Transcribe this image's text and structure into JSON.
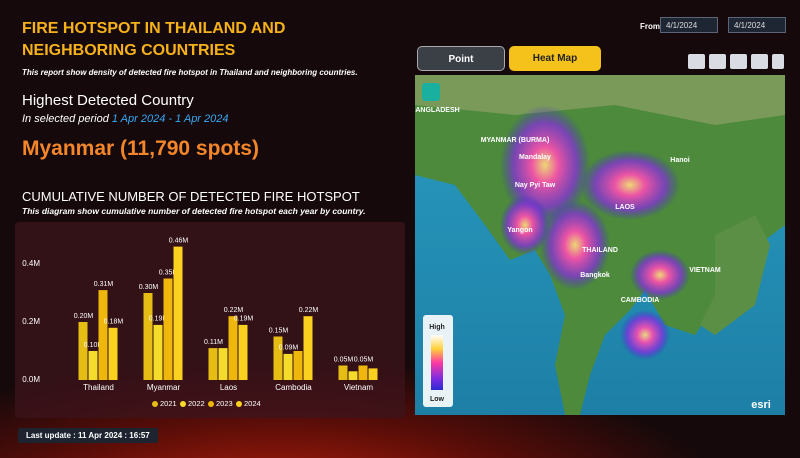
{
  "header": {
    "title": "FIRE HOTSPOT IN THAILAND AND NEIGHBORING COUNTRIES",
    "description": "This report show density of detected fire hotspot in Thailand and neighboring countries.",
    "from_label": "From",
    "date_from": "4/1/2024",
    "date_to": "4/1/2024"
  },
  "highlight": {
    "heading": "Highest Detected Country",
    "period_label": "In selected period",
    "period": "1 Apr 2024 - 1 Apr 2024",
    "result": "Myanmar (11,790 spots)"
  },
  "chart_data": {
    "type": "bar",
    "title": "CUMULATIVE NUMBER OF DETECTED FIRE HOTSPOT",
    "subtitle": "This diagram show cumulative number of detected fire hotspot each year by country.",
    "categories": [
      "Thailand",
      "Myanmar",
      "Laos",
      "Cambodia",
      "Vietnam"
    ],
    "series": [
      {
        "name": "2021",
        "color": "#e6bd14",
        "values": [
          0.2,
          0.3,
          0.11,
          0.15,
          0.05
        ],
        "value_labels": [
          "0.20M",
          "0.30M",
          "0.11M",
          "0.15M",
          "0.05M"
        ]
      },
      {
        "name": "2022",
        "color": "#f5dc2a",
        "values": [
          0.1,
          0.19,
          0.11,
          0.09,
          0.03
        ],
        "value_labels": [
          "0.10M",
          "0.19M",
          null,
          "0.09M",
          null
        ]
      },
      {
        "name": "2023",
        "color": "#efb70c",
        "values": [
          0.31,
          0.35,
          0.22,
          0.1,
          0.05
        ],
        "value_labels": [
          "0.31M",
          "0.35M",
          "0.22M",
          null,
          "0.05M"
        ]
      },
      {
        "name": "2024",
        "color": "#fbd120",
        "values": [
          0.18,
          0.46,
          0.19,
          0.22,
          0.04
        ],
        "value_labels": [
          "0.18M",
          "0.46M",
          "0.19M",
          "0.22M",
          null
        ]
      }
    ],
    "ylim": [
      0,
      0.5
    ],
    "yticks": [
      {
        "value": 0,
        "label": "0.0M"
      },
      {
        "value": 0.2,
        "label": "0.2M"
      },
      {
        "value": 0.4,
        "label": "0.4M"
      }
    ]
  },
  "map": {
    "tabs": [
      "Point",
      "Heat Map"
    ],
    "labels": [
      "BANGLADESH",
      "MYANMAR (BURMA)",
      "Mandalay",
      "Nay Pyi Taw",
      "LAOS",
      "THAILAND",
      "Bangkok",
      "CAMBODIA",
      "VIETNAM",
      "Hanoi",
      "Yangon"
    ],
    "legend_high": "High",
    "legend_low": "Low",
    "attribution": "esri"
  },
  "footer": {
    "last_update": "Last update : 11 Apr 2024 : 16:57"
  }
}
